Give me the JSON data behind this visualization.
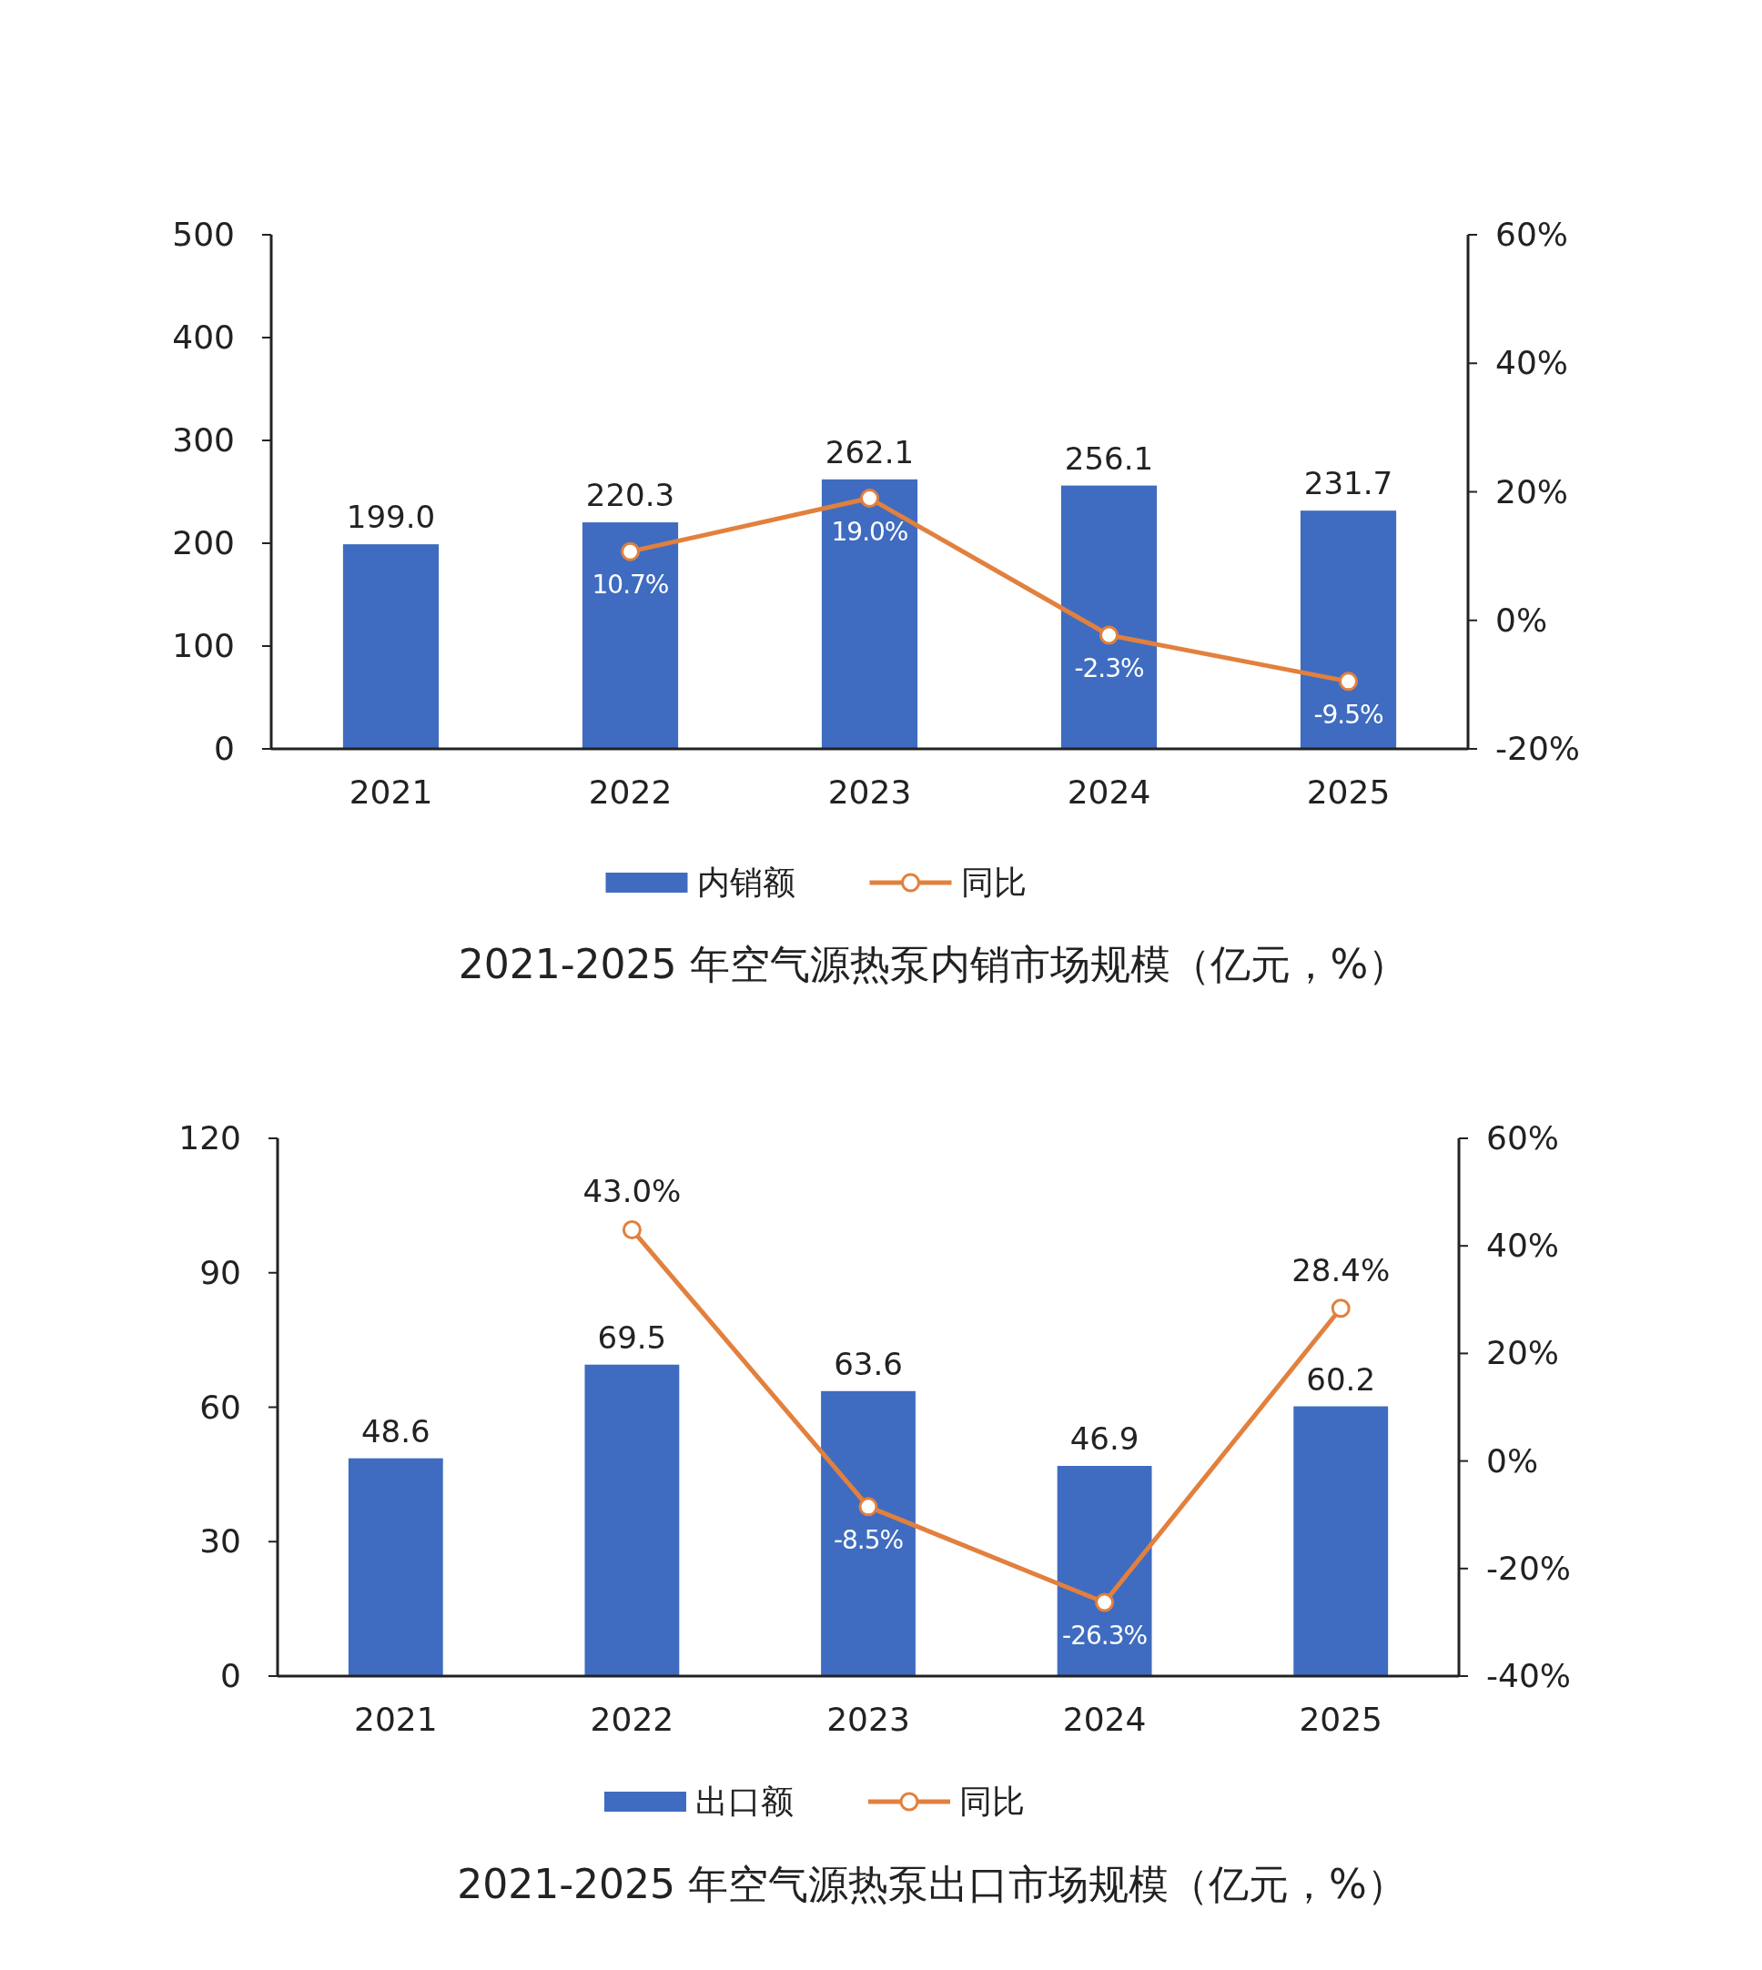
{
  "chart_data": [
    {
      "type": "bar",
      "title": "2021-2025 年空气源热泵内销市场规模（亿元，%）",
      "categories": [
        "2021",
        "2022",
        "2023",
        "2024",
        "2025"
      ],
      "legend": "bottom",
      "ylim": [
        0,
        500
      ],
      "yticks": [
        0,
        100,
        200,
        300,
        400,
        500
      ],
      "y2lim": [
        -20,
        60
      ],
      "y2ticks": [
        {
          "value": -20,
          "label": "-20%"
        },
        {
          "value": 0,
          "label": "0%"
        },
        {
          "value": 20,
          "label": "20%"
        },
        {
          "value": 40,
          "label": "40%"
        },
        {
          "value": 60,
          "label": "60%"
        }
      ],
      "marker": "circle",
      "series": [
        {
          "name": "内销额",
          "color": "#3f6cc0",
          "values": [
            199.0,
            220.3,
            262.1,
            256.1,
            231.7
          ],
          "value_labels": [
            "199.0",
            "220.3",
            "262.1",
            "256.1",
            "231.7"
          ]
        },
        {
          "name": "同比",
          "type": "line",
          "axis": "y2",
          "color": "#e2803d",
          "values": [
            null,
            10.7,
            19.0,
            -2.3,
            -9.5
          ],
          "value_labels": [
            null,
            "10.7%",
            "19.0%",
            "-2.3%",
            "-9.5%"
          ]
        }
      ]
    },
    {
      "type": "bar",
      "title": "2021-2025 年空气源热泵出口市场规模（亿元，%）",
      "categories": [
        "2021",
        "2022",
        "2023",
        "2024",
        "2025"
      ],
      "legend": "bottom",
      "ylim": [
        0,
        120
      ],
      "yticks": [
        0,
        30,
        60,
        90,
        120
      ],
      "y2lim": [
        -40,
        60
      ],
      "y2ticks": [
        {
          "value": -40,
          "label": "-40%"
        },
        {
          "value": -20,
          "label": "-20%"
        },
        {
          "value": 0,
          "label": "0%"
        },
        {
          "value": 20,
          "label": "20%"
        },
        {
          "value": 40,
          "label": "40%"
        },
        {
          "value": 60,
          "label": "60%"
        }
      ],
      "marker": "circle",
      "series": [
        {
          "name": "出口额",
          "color": "#3f6cc0",
          "values": [
            48.6,
            69.5,
            63.6,
            46.9,
            60.2
          ],
          "value_labels": [
            "48.6",
            "69.5",
            "63.6",
            "46.9",
            "60.2"
          ]
        },
        {
          "name": "同比",
          "type": "line",
          "axis": "y2",
          "color": "#e2803d",
          "values": [
            null,
            43.0,
            -8.5,
            -26.3,
            28.4
          ],
          "value_labels": [
            null,
            "43.0%",
            "-8.5%",
            "-26.3%",
            "28.4%"
          ]
        }
      ]
    }
  ]
}
